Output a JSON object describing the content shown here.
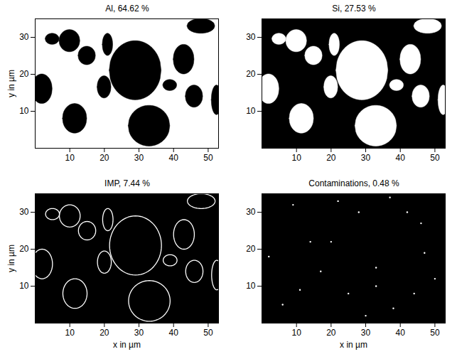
{
  "chart_data": [
    {
      "type": "area",
      "title": "Al, 64.62 %",
      "color": "#000000",
      "xlim": [
        0,
        53
      ],
      "ylim": [
        0,
        35
      ],
      "xticks": [
        10,
        20,
        30,
        40,
        50
      ],
      "yticks": [
        10,
        20,
        30
      ],
      "ylabel": "y in µm",
      "regions": [
        {
          "cx": 29,
          "cy": 21,
          "rx": 7.5,
          "ry": 8
        },
        {
          "cx": 33,
          "cy": 6,
          "rx": 6,
          "ry": 5.5
        },
        {
          "cx": 2,
          "cy": 16,
          "rx": 3,
          "ry": 4
        },
        {
          "cx": 11.5,
          "cy": 8,
          "rx": 3.5,
          "ry": 4
        },
        {
          "cx": 10,
          "cy": 29,
          "rx": 3,
          "ry": 3
        },
        {
          "cx": 15,
          "cy": 25,
          "rx": 2.5,
          "ry": 2.5
        },
        {
          "cx": 20,
          "cy": 16.5,
          "rx": 2,
          "ry": 3
        },
        {
          "cx": 43,
          "cy": 24,
          "rx": 3,
          "ry": 4
        },
        {
          "cx": 46,
          "cy": 14,
          "rx": 2.5,
          "ry": 3
        },
        {
          "cx": 48,
          "cy": 33,
          "rx": 4,
          "ry": 2
        },
        {
          "cx": 39,
          "cy": 17,
          "rx": 2,
          "ry": 1.5
        },
        {
          "cx": 52.5,
          "cy": 13,
          "rx": 1.5,
          "ry": 4
        },
        {
          "cx": 21,
          "cy": 28,
          "rx": 1.5,
          "ry": 3
        },
        {
          "cx": 5,
          "cy": 29.5,
          "rx": 2,
          "ry": 1.5
        }
      ]
    },
    {
      "type": "area",
      "title": "Si, 27.53 %",
      "color": "#ffffff",
      "xlim": [
        0,
        53
      ],
      "ylim": [
        0,
        35
      ],
      "xticks": [
        10,
        20,
        30,
        40,
        50
      ],
      "yticks": [
        10,
        20,
        30
      ],
      "regions": [
        {
          "cx": 29,
          "cy": 21,
          "rx": 7.5,
          "ry": 8
        },
        {
          "cx": 33,
          "cy": 6,
          "rx": 6,
          "ry": 5.5
        },
        {
          "cx": 2,
          "cy": 16,
          "rx": 3,
          "ry": 4
        },
        {
          "cx": 11.5,
          "cy": 8,
          "rx": 3.5,
          "ry": 4
        },
        {
          "cx": 10,
          "cy": 29,
          "rx": 3,
          "ry": 3
        },
        {
          "cx": 15,
          "cy": 25,
          "rx": 2.5,
          "ry": 2.5
        },
        {
          "cx": 20,
          "cy": 16.5,
          "rx": 2,
          "ry": 3
        },
        {
          "cx": 43,
          "cy": 24,
          "rx": 3,
          "ry": 4
        },
        {
          "cx": 46,
          "cy": 14,
          "rx": 2.5,
          "ry": 3
        },
        {
          "cx": 48,
          "cy": 33,
          "rx": 4,
          "ry": 2
        },
        {
          "cx": 39,
          "cy": 17,
          "rx": 2,
          "ry": 1.5
        },
        {
          "cx": 52.5,
          "cy": 13,
          "rx": 1.5,
          "ry": 4
        },
        {
          "cx": 21,
          "cy": 28,
          "rx": 1.5,
          "ry": 3
        },
        {
          "cx": 5,
          "cy": 29.5,
          "rx": 2,
          "ry": 1.5
        }
      ]
    },
    {
      "type": "line",
      "title": "IMP,  7.44 %",
      "color": "#ffffff",
      "xlim": [
        0,
        53
      ],
      "ylim": [
        0,
        35
      ],
      "xticks": [
        10,
        20,
        30,
        40,
        50
      ],
      "yticks": [
        10,
        20,
        30
      ],
      "xlabel": "x in µm",
      "ylabel": "y in µm",
      "regions": [
        {
          "cx": 29,
          "cy": 21,
          "rx": 7.5,
          "ry": 8
        },
        {
          "cx": 33,
          "cy": 6,
          "rx": 6,
          "ry": 5.5
        },
        {
          "cx": 2,
          "cy": 16,
          "rx": 3,
          "ry": 4
        },
        {
          "cx": 11.5,
          "cy": 8,
          "rx": 3.5,
          "ry": 4
        },
        {
          "cx": 10,
          "cy": 29,
          "rx": 3,
          "ry": 3
        },
        {
          "cx": 15,
          "cy": 25,
          "rx": 2.5,
          "ry": 2.5
        },
        {
          "cx": 20,
          "cy": 16.5,
          "rx": 2,
          "ry": 3
        },
        {
          "cx": 43,
          "cy": 24,
          "rx": 3,
          "ry": 4
        },
        {
          "cx": 46,
          "cy": 14,
          "rx": 2.5,
          "ry": 3
        },
        {
          "cx": 48,
          "cy": 33,
          "rx": 4,
          "ry": 2
        },
        {
          "cx": 39,
          "cy": 17,
          "rx": 2,
          "ry": 1.5
        },
        {
          "cx": 52.5,
          "cy": 13,
          "rx": 1.5,
          "ry": 4
        },
        {
          "cx": 21,
          "cy": 28,
          "rx": 1.5,
          "ry": 3
        },
        {
          "cx": 5,
          "cy": 29.5,
          "rx": 2,
          "ry": 1.5
        }
      ]
    },
    {
      "type": "scatter",
      "title": "Contaminations, 0.48 %",
      "color": "#ffffff",
      "xlim": [
        0,
        53
      ],
      "ylim": [
        0,
        35
      ],
      "xticks": [
        10,
        20,
        30,
        40,
        50
      ],
      "yticks": [
        10,
        20,
        30
      ],
      "xlabel": "x in µm",
      "x": [
        9,
        22,
        37,
        14,
        20,
        46,
        2,
        11,
        25,
        33,
        38,
        44,
        33,
        47,
        6,
        28,
        50,
        42,
        17,
        30
      ],
      "y": [
        32,
        33,
        34,
        22,
        22,
        27,
        18,
        9,
        8,
        10,
        4,
        8,
        15,
        19,
        5,
        30,
        12,
        30,
        14,
        2
      ]
    }
  ]
}
